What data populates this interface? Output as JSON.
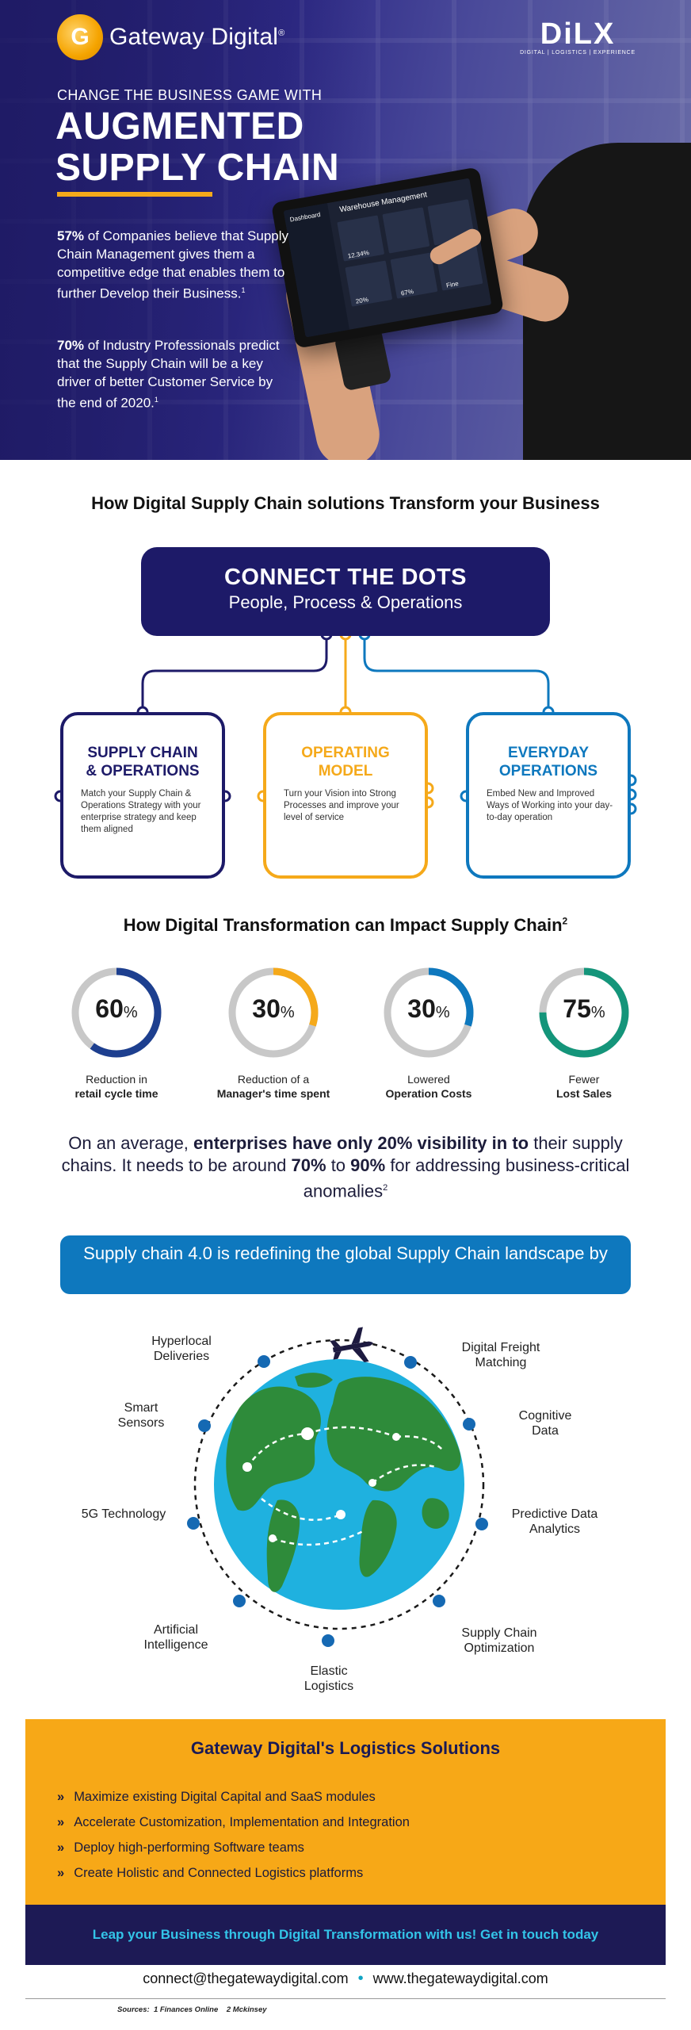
{
  "brand": {
    "name": "Gateway Digital",
    "reg": "®",
    "partner_big": "DiLX",
    "partner_small": "DIGITAL | LOGISTICS | EXPERIENCE"
  },
  "hero": {
    "tagline": "CHANGE THE BUSINESS GAME WITH",
    "headline_1": "AUGMENTED",
    "headline_2": "SUPPLY CHAIN",
    "stat1_pct": "57%",
    "stat1_text": " of Companies believe that Supply Chain Management gives them a competitive edge that enables them to further Develop their Business.",
    "stat1_ref": "1",
    "stat2_pct": "70%",
    "stat2_text": " of Industry Professionals predict that the Supply Chain will be a key driver of better Customer Service by the end of 2020.",
    "stat2_ref": "1",
    "tablet_title": "Warehouse Management",
    "tablet_tab": "Dashboard",
    "tablet_k1": "12.34%",
    "tablet_k2": "20%",
    "tablet_k3": "67%",
    "tablet_k4": "Fine"
  },
  "section1": {
    "title": "How Digital Supply Chain solutions Transform your Business",
    "box_title": "CONNECT THE DOTS",
    "box_sub": "People, Process & Operations",
    "cards": [
      {
        "title_1": "SUPPLY CHAIN",
        "title_2": "& OPERATIONS",
        "body": "Match your Supply Chain & Operations Strategy with your enterprise strategy and keep them aligned",
        "color": "#1d1a68"
      },
      {
        "title_1": "OPERATING",
        "title_2": "MODEL",
        "body": "Turn your Vision into Strong Processes and improve your level of service",
        "color": "#f5a91a"
      },
      {
        "title_1": "EVERYDAY",
        "title_2": "OPERATIONS",
        "body": "Embed New and Improved Ways of Working into your day-to-day operation",
        "color": "#0e78be"
      }
    ]
  },
  "section2": {
    "title": "How Digital Transformation can Impact Supply Chain",
    "title_ref": "2",
    "stats": [
      {
        "value": "60",
        "unit": "%",
        "fraction": 0.6,
        "color": "#1d3f8f",
        "line1": "Reduction in",
        "line2": "retail cycle time"
      },
      {
        "value": "30",
        "unit": "%",
        "fraction": 0.3,
        "color": "#f5a91a",
        "line1": "Reduction of a",
        "line2": "Manager's time spent"
      },
      {
        "value": "30",
        "unit": "%",
        "fraction": 0.3,
        "color": "#0e78be",
        "line1": "Lowered",
        "line2": "Operation Costs"
      },
      {
        "value": "75",
        "unit": "%",
        "fraction": 0.75,
        "color": "#14957a",
        "line1": "Fewer",
        "line2": "Lost Sales"
      }
    ]
  },
  "avg": {
    "p1": "On an average, ",
    "b1": "enterprises have only 20% visibility in to",
    "p2": " their supply chains. It needs to be around ",
    "b2": "70%",
    "p3": " to ",
    "b3": "90%",
    "p4": " for addressing business-critical anomalies",
    "ref": "2"
  },
  "banner": {
    "text": "Supply chain 4.0 is redefining the global Supply Chain landscape by"
  },
  "globe_items": {
    "hyperlocal": "Hyperlocal Deliveries",
    "smart": "Smart Sensors",
    "g5": "5G Technology",
    "ai": "Artificial Intelligence",
    "elastic": "Elastic Logistics",
    "optim": "Supply Chain Optimization",
    "predictive": "Predictive Data Analytics",
    "cognitive": "Cognitive Data",
    "freight": "Digital Freight Matching"
  },
  "solutions": {
    "title": "Gateway Digital's Logistics Solutions",
    "items": [
      "Maximize existing Digital Capital and SaaS modules",
      "Accelerate Customization, Implementation and Integration",
      "Deploy high-performing Software teams",
      "Create Holistic and Connected Logistics platforms"
    ],
    "chevron": "»",
    "cta": "Leap your Business through Digital Transformation with us! Get in touch today"
  },
  "footer": {
    "email": "connect@thegatewaydigital.com",
    "separator": "•",
    "website": "www.thegatewaydigital.com",
    "sources_label": "Sources:",
    "source1": "1 Finances Online",
    "source2": "2 Mckinsey"
  }
}
